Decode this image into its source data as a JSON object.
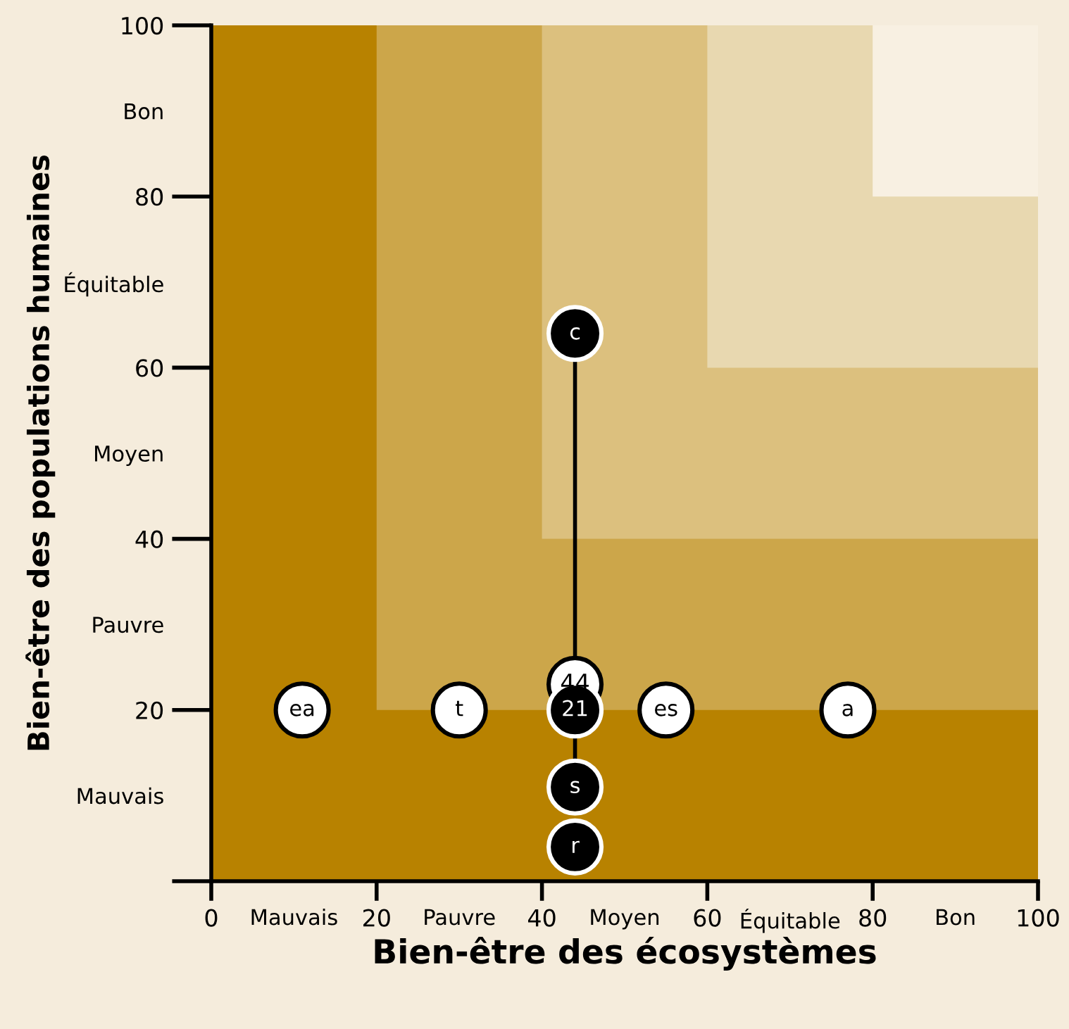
{
  "chart_data": {
    "type": "scatter",
    "xlabel": "Bien-être des écosystèmes",
    "ylabel": "Bien-être des populations humaines",
    "xlim": [
      0,
      100
    ],
    "ylim": [
      0,
      100
    ],
    "xticks": [
      0,
      20,
      40,
      60,
      80,
      100,
      {
        "value": 10,
        "label": "Mauvais"
      },
      {
        "value": 30,
        "label": "Pauvre"
      },
      {
        "value": 50,
        "label": "Moyen"
      },
      {
        "value": 70,
        "label": "Équitable"
      },
      {
        "value": 90,
        "label": "Bon"
      }
    ],
    "yticks": [
      {
        "value": 0,
        "label": null
      },
      20,
      40,
      60,
      80,
      100,
      {
        "value": 10,
        "label": "Mauvais"
      },
      {
        "value": 30,
        "label": "Pauvre"
      },
      {
        "value": 50,
        "label": "Moyen"
      },
      {
        "value": 70,
        "label": "Équitable"
      },
      {
        "value": 90,
        "label": "Bon"
      }
    ],
    "grid": false,
    "marker": "circle",
    "bands": [
      {
        "axis": "x",
        "from": 0,
        "to": 100,
        "color": "#b88200"
      },
      {
        "axis": "x",
        "from": 20,
        "to": 100,
        "color": "#cca64a"
      },
      {
        "axis": "x",
        "from": 40,
        "to": 100,
        "color": "#dcc07e"
      },
      {
        "axis": "x",
        "from": 60,
        "to": 100,
        "color": "#e8d8b0"
      },
      {
        "axis": "x",
        "from": 80,
        "to": 100,
        "color": "#f8f0e2"
      }
    ],
    "series": [
      {
        "type": "line",
        "marker": "none",
        "color": "#000000",
        "x": [
          44,
          44
        ],
        "values": [
          64,
          11
        ]
      },
      {
        "name": "ea",
        "color": "#ffffff",
        "x": [
          11
        ],
        "values": [
          20
        ]
      },
      {
        "name": "t",
        "color": "#ffffff",
        "x": [
          30
        ],
        "values": [
          20
        ]
      },
      {
        "name": "es",
        "color": "#ffffff",
        "x": [
          55
        ],
        "values": [
          20
        ]
      },
      {
        "name": "a",
        "color": "#ffffff",
        "x": [
          77
        ],
        "values": [
          20
        ]
      },
      {
        "name": "c",
        "color": "#000000",
        "x": [
          44
        ],
        "values": [
          64
        ]
      },
      {
        "name": "44",
        "color": "#ffffff",
        "x": [
          44
        ],
        "values": [
          23
        ]
      },
      {
        "name": "21",
        "color": "#000000",
        "x": [
          44
        ],
        "values": [
          20
        ]
      },
      {
        "name": "s",
        "color": "#000000",
        "x": [
          44
        ],
        "values": [
          11
        ]
      },
      {
        "name": "r",
        "color": "#000000",
        "x": [
          44
        ],
        "values": [
          4
        ]
      }
    ]
  }
}
